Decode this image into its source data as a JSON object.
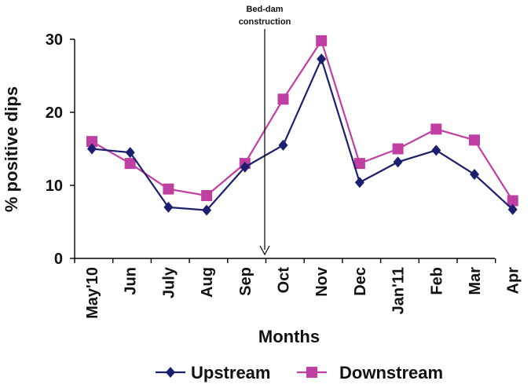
{
  "chart_data": {
    "type": "line",
    "categories": [
      "May'10",
      "Jun",
      "July",
      "Aug",
      "Sep",
      "Oct",
      "Nov",
      "Dec",
      "Jan'11",
      "Feb",
      "Mar",
      "Apr"
    ],
    "series": [
      {
        "name": "Upstream",
        "color": "#1c1f6e",
        "marker": "diamond",
        "values": [
          15.0,
          14.5,
          7.0,
          6.6,
          12.5,
          15.5,
          27.3,
          10.4,
          13.2,
          14.8,
          11.5,
          6.7
        ]
      },
      {
        "name": "Downstream",
        "color": "#c03fa3",
        "marker": "square",
        "values": [
          16.0,
          13.0,
          9.5,
          8.6,
          13.0,
          21.8,
          29.8,
          13.0,
          15.0,
          17.7,
          16.2,
          7.9
        ]
      }
    ],
    "xlabel": "Months",
    "ylabel": "% positive dips",
    "ylim": [
      0,
      30
    ],
    "yticks": [
      "0",
      "10",
      "20",
      "30"
    ],
    "grid": false,
    "legend_position": "bottom",
    "annotation": {
      "text_line1": "Bed-dam",
      "text_line2": "construction",
      "between_categories": [
        "Sep",
        "Oct"
      ]
    }
  }
}
